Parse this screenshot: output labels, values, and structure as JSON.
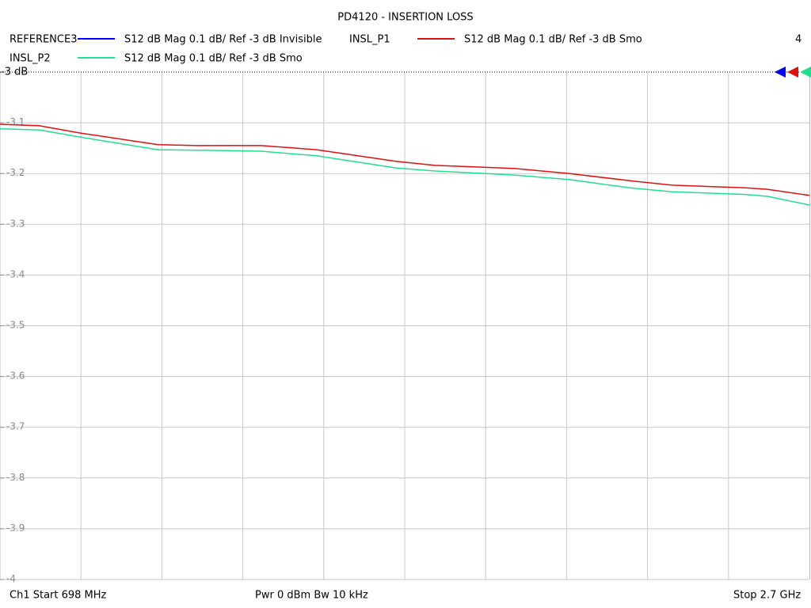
{
  "chart_data": {
    "type": "line",
    "title": "PD4120 - INSERTION LOSS",
    "corner_label": "4",
    "footer": {
      "start": "Ch1  Start  698 MHz",
      "power": "Pwr  0 dBm  Bw  10 kHz",
      "stop": "Stop  2.7 GHz"
    },
    "x": [
      698,
      796,
      894,
      1089,
      1187,
      1344,
      1481,
      1677,
      1774,
      1970,
      2107,
      2264,
      2361,
      2538,
      2596,
      2700
    ],
    "xlim": [
      698,
      2700
    ],
    "x_grid_divisions": 10,
    "ylim": [
      -4,
      -3
    ],
    "yticks": [
      {
        "value": -3,
        "label": "-3 dB"
      },
      -3.1,
      -3.2,
      -3.3,
      -3.4,
      -3.5,
      -3.6,
      -3.7,
      -3.8,
      -3.9,
      -4
    ],
    "grid": true,
    "series": [
      {
        "name": "REFERENCE3",
        "label": "S12  dB Mag  0.1 dB/ Ref -3 dB  Invisible",
        "color": "#0000ff",
        "values": [
          null,
          null,
          null,
          null,
          null,
          null,
          null,
          null,
          null,
          null,
          null,
          null,
          null,
          null,
          null,
          null
        ]
      },
      {
        "name": "INSL_P1",
        "label": "S12  dB Mag  0.1 dB/ Ref -3 dB  Smo",
        "color": "#e01010",
        "values": [
          -3.103,
          -3.106,
          -3.12,
          -3.143,
          -3.145,
          -3.145,
          -3.153,
          -3.176,
          -3.184,
          -3.19,
          -3.2,
          -3.215,
          -3.223,
          -3.228,
          -3.231,
          -3.243
        ]
      },
      {
        "name": "INSL_P2",
        "label": "S12  dB Mag  0.1 dB/ Ref -3 dB  Smo",
        "color": "#20e090",
        "values": [
          -3.112,
          -3.114,
          -3.128,
          -3.153,
          -3.154,
          -3.156,
          -3.165,
          -3.189,
          -3.195,
          -3.203,
          -3.212,
          -3.229,
          -3.236,
          -3.241,
          -3.245,
          -3.262
        ]
      }
    ]
  }
}
